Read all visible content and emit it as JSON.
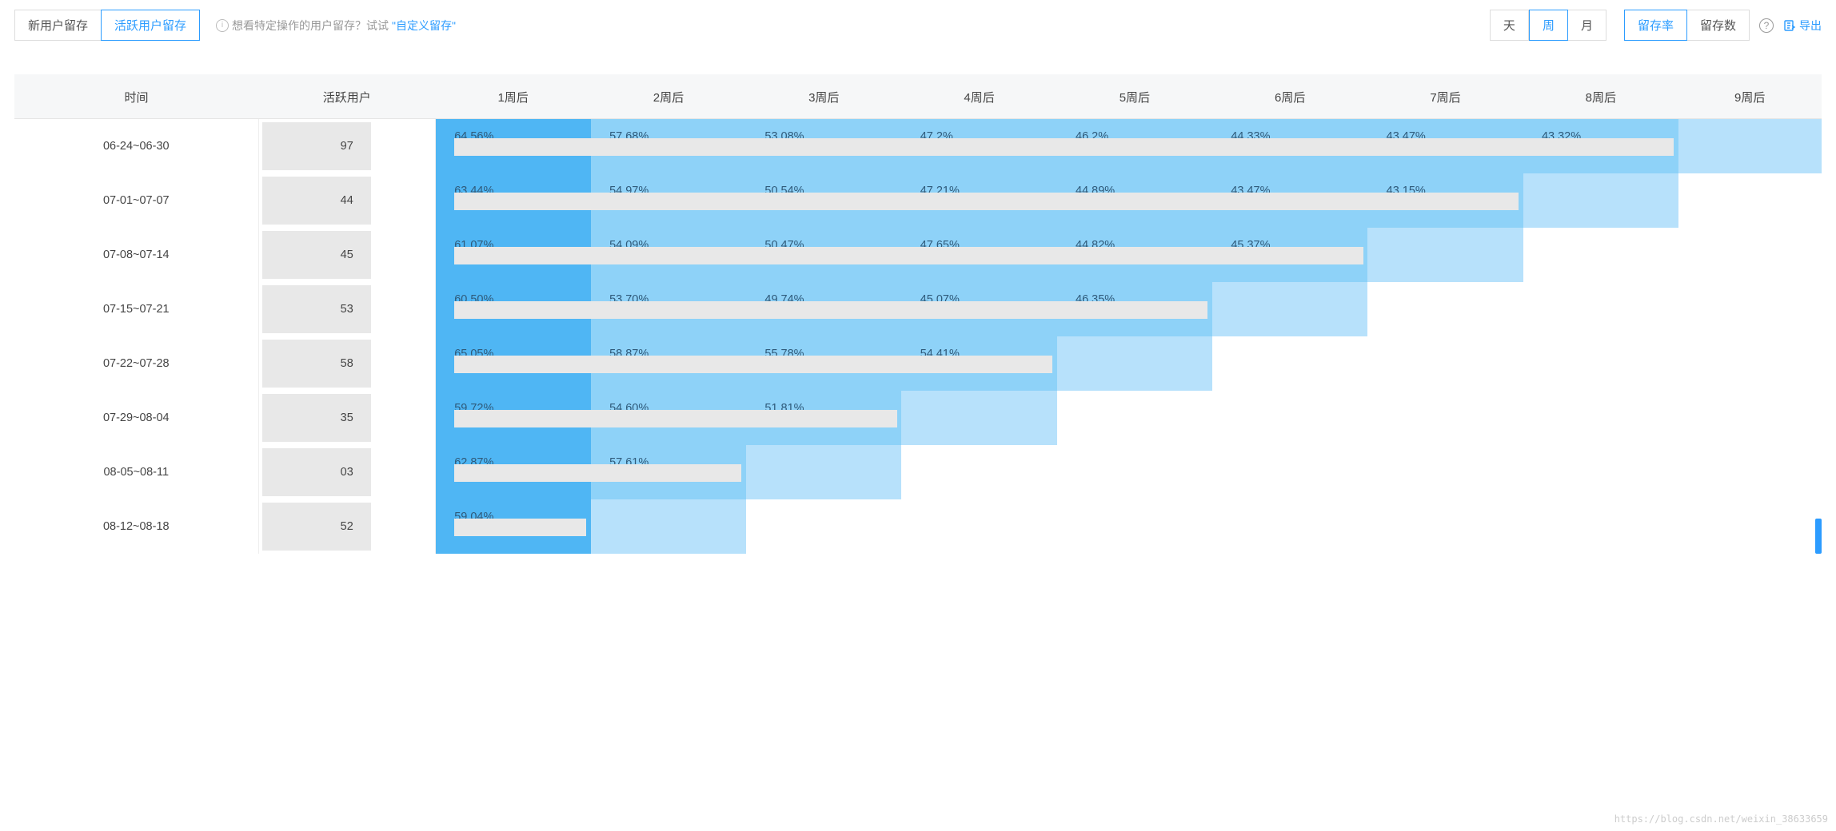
{
  "toolbar": {
    "tabs": [
      {
        "label": "新用户留存",
        "active": false
      },
      {
        "label": "活跃用户留存",
        "active": true
      }
    ],
    "hint_prefix": "想看特定操作的用户留存？试试",
    "hint_link": "\"自定义留存\"",
    "time_granularity": [
      {
        "label": "天",
        "active": false
      },
      {
        "label": "周",
        "active": true
      },
      {
        "label": "月",
        "active": false
      }
    ],
    "metric_toggle": [
      {
        "label": "留存率",
        "active": true
      },
      {
        "label": "留存数",
        "active": false
      }
    ],
    "export_label": "导出"
  },
  "cohort": {
    "headers": {
      "time": "时间",
      "users": "活跃用户",
      "weeks": [
        "1周后",
        "2周后",
        "3周后",
        "4周后",
        "5周后",
        "6周后",
        "7周后",
        "8周后",
        "9周后"
      ]
    },
    "colors": {
      "week1_bg": "#4fb6f4",
      "default_bg": "#8ed2f8",
      "light_bg": "#b7e1fb",
      "empty_bg": "#ffffff",
      "bar_bg": "#e8e8e8",
      "text": "#2f5a7a"
    },
    "rows": [
      {
        "time": "06-24~06-30",
        "users_masked": "97",
        "cells": [
          {
            "val": "64.56%",
            "bg": "#4fb6f4"
          },
          {
            "val": "57.68%",
            "bg": "#8ed2f8"
          },
          {
            "val": "53.08%",
            "bg": "#8ed2f8"
          },
          {
            "val": "47.2%",
            "bg": "#8ed2f8"
          },
          {
            "val": "46.2%",
            "bg": "#8ed2f8"
          },
          {
            "val": "44.33%",
            "bg": "#8ed2f8"
          },
          {
            "val": "43.47%",
            "bg": "#8ed2f8"
          },
          {
            "val": "43.32%",
            "bg": "#8ed2f8"
          },
          {
            "val": "",
            "bg": "#b7e1fb",
            "nobar": true
          }
        ]
      },
      {
        "time": "07-01~07-07",
        "users_masked": "44",
        "cells": [
          {
            "val": "63.44%",
            "bg": "#4fb6f4"
          },
          {
            "val": "54.97%",
            "bg": "#8ed2f8"
          },
          {
            "val": "50.54%",
            "bg": "#8ed2f8"
          },
          {
            "val": "47.21%",
            "bg": "#8ed2f8"
          },
          {
            "val": "44.89%",
            "bg": "#8ed2f8"
          },
          {
            "val": "43.47%",
            "bg": "#8ed2f8"
          },
          {
            "val": "43.15%",
            "bg": "#8ed2f8"
          },
          {
            "val": "",
            "bg": "#b7e1fb",
            "nobar": true
          },
          null
        ]
      },
      {
        "time": "07-08~07-14",
        "users_masked": "45",
        "cells": [
          {
            "val": "61.07%",
            "bg": "#4fb6f4"
          },
          {
            "val": "54.09%",
            "bg": "#8ed2f8"
          },
          {
            "val": "50.47%",
            "bg": "#8ed2f8"
          },
          {
            "val": "47.65%",
            "bg": "#8ed2f8"
          },
          {
            "val": "44.82%",
            "bg": "#8ed2f8"
          },
          {
            "val": "45.37%",
            "bg": "#8ed2f8"
          },
          {
            "val": "",
            "bg": "#b7e1fb",
            "nobar": true
          },
          null,
          null
        ]
      },
      {
        "time": "07-15~07-21",
        "users_masked": "53",
        "cells": [
          {
            "val": "60.50%",
            "bg": "#4fb6f4"
          },
          {
            "val": "53.70%",
            "bg": "#8ed2f8"
          },
          {
            "val": "49.74%",
            "bg": "#8ed2f8"
          },
          {
            "val": "45.07%",
            "bg": "#8ed2f8"
          },
          {
            "val": "46.35%",
            "bg": "#8ed2f8"
          },
          {
            "val": "",
            "bg": "#b7e1fb",
            "nobar": true
          },
          null,
          null,
          null
        ]
      },
      {
        "time": "07-22~07-28",
        "users_masked": "58",
        "cells": [
          {
            "val": "65.05%",
            "bg": "#4fb6f4"
          },
          {
            "val": "58.87%",
            "bg": "#8ed2f8"
          },
          {
            "val": "55.78%",
            "bg": "#8ed2f8"
          },
          {
            "val": "54.41%",
            "bg": "#8ed2f8"
          },
          {
            "val": "",
            "bg": "#b7e1fb",
            "nobar": true
          },
          null,
          null,
          null,
          null
        ]
      },
      {
        "time": "07-29~08-04",
        "users_masked": "35",
        "cells": [
          {
            "val": "59.72%",
            "bg": "#4fb6f4"
          },
          {
            "val": "54.60%",
            "bg": "#8ed2f8"
          },
          {
            "val": "51.81%",
            "bg": "#8ed2f8"
          },
          {
            "val": "",
            "bg": "#b7e1fb",
            "nobar": true
          },
          null,
          null,
          null,
          null,
          null
        ]
      },
      {
        "time": "08-05~08-11",
        "users_masked": "03",
        "cells": [
          {
            "val": "62.87%",
            "bg": "#4fb6f4"
          },
          {
            "val": "57.61%",
            "bg": "#8ed2f8"
          },
          {
            "val": "",
            "bg": "#b7e1fb",
            "nobar": true
          },
          null,
          null,
          null,
          null,
          null,
          null
        ]
      },
      {
        "time": "08-12~08-18",
        "users_masked": "52",
        "cells": [
          {
            "val": "59.04%",
            "bg": "#4fb6f4"
          },
          {
            "val": "",
            "bg": "#b7e1fb",
            "nobar": true
          },
          null,
          null,
          null,
          null,
          null,
          null,
          null
        ]
      }
    ]
  },
  "watermark": "https://blog.csdn.net/weixin_38633659"
}
